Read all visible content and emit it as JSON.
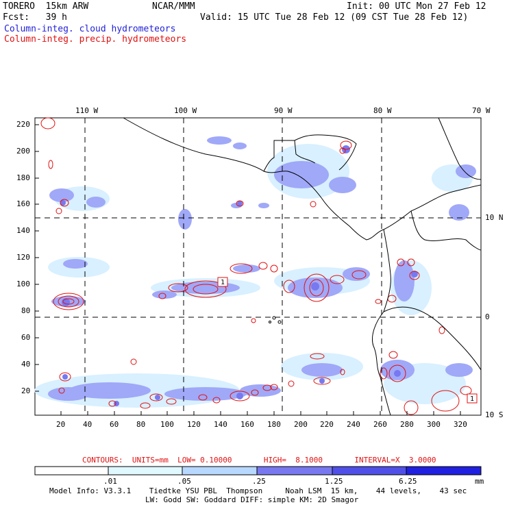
{
  "header": {
    "model_name": "TORERO  15km ARW",
    "org": "NCAR/MMM",
    "init": "Init: 00 UTC Mon 27 Feb 12",
    "fcst": "Fcst:   39 h",
    "valid": "Valid: 15 UTC Tue 28 Feb 12 (09 CST Tue 28 Feb 12)",
    "field_blue": "Column-integ. cloud hydrometeors",
    "field_red": "Column-integ. precip. hydrometeors"
  },
  "top_lon_labels": [
    "110 W",
    "100 W",
    "90 W",
    "80 W",
    "70 W"
  ],
  "right_lat_labels": [
    "10 N",
    "0",
    "10 S"
  ],
  "y_ticks": [
    "220",
    "200",
    "180",
    "160",
    "140",
    "120",
    "100",
    "80",
    "60",
    "40",
    "20"
  ],
  "x_ticks": [
    "20",
    "40",
    "60",
    "80",
    "100",
    "120",
    "140",
    "160",
    "180",
    "200",
    "220",
    "240",
    "260",
    "280",
    "300",
    "320"
  ],
  "box_labels": [
    "1",
    "1"
  ],
  "contour_info": "CONTOURS:  UNITS=mm  LOW= 0.10000       HIGH=  8.1000       INTERVAL=X  3.0000",
  "colorbar": {
    "labels": [
      ".01",
      ".05",
      ".25",
      "1.25",
      "6.25"
    ],
    "unit": "mm",
    "colors": [
      "#ffffff",
      "#e0f8ff",
      "#b8d8ff",
      "#a0a8f8",
      "#7878f0",
      "#5050e8",
      "#2020e0"
    ]
  },
  "footer": {
    "line1": "Model Info: V3.3.1    Tiedtke YSU PBL  Thompson     Noah LSM  15 km,    44 levels,    43 sec",
    "line2": "LW: Godd SW: Goddard DIFF: simple KM: 2D Smagor"
  },
  "colors": {
    "cloud": "#a0a8f8",
    "cloud_light": "#d8f0ff",
    "cloud_mid": "#7878f0",
    "precip": "#e01010",
    "coast": "#000000"
  }
}
